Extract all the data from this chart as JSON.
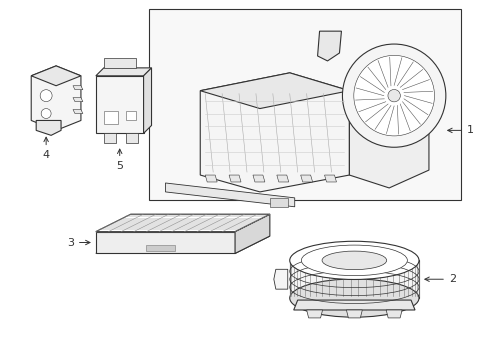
{
  "bg_color": "#ffffff",
  "line_color": "#333333",
  "fill_white": "#ffffff",
  "fill_light": "#f5f5f5",
  "fill_gray": "#e8e8e8",
  "lw_main": 0.8,
  "lw_thin": 0.4,
  "lw_thick": 1.0,
  "fig_w": 4.89,
  "fig_h": 3.6,
  "dpi": 100,
  "label_fs": 8
}
